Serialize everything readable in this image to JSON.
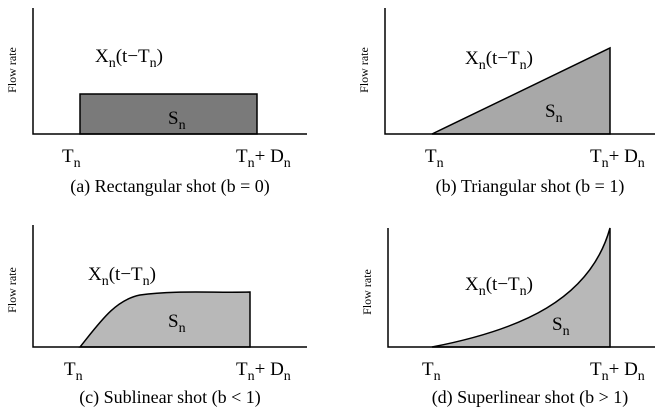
{
  "panels": [
    {
      "y_label": "Flow rate",
      "curve_label": [
        {
          "t": "X"
        },
        {
          "s": "n"
        },
        {
          "t": "(t−T"
        },
        {
          "s": "n"
        },
        {
          "t": ")"
        }
      ],
      "area_label": [
        {
          "t": "S"
        },
        {
          "s": "n"
        }
      ],
      "start_label": [
        {
          "t": "T"
        },
        {
          "s": "n"
        }
      ],
      "end_label": [
        {
          "t": "T"
        },
        {
          "s": "n"
        },
        {
          "t": "+ D"
        },
        {
          "s": "n"
        }
      ],
      "caption": "(a) Rectangular shot (b = 0)"
    },
    {
      "y_label": "Flow rate",
      "curve_label": [
        {
          "t": "X"
        },
        {
          "s": "n"
        },
        {
          "t": "(t−T"
        },
        {
          "s": "n"
        },
        {
          "t": ")"
        }
      ],
      "area_label": [
        {
          "t": "S"
        },
        {
          "s": "n"
        }
      ],
      "start_label": [
        {
          "t": "T"
        },
        {
          "s": "n"
        }
      ],
      "end_label": [
        {
          "t": "T"
        },
        {
          "s": "n"
        },
        {
          "t": "+ D"
        },
        {
          "s": "n"
        }
      ],
      "caption": "(b) Triangular shot (b = 1)"
    },
    {
      "y_label": "Flow rate",
      "curve_label": [
        {
          "t": "X"
        },
        {
          "s": "n"
        },
        {
          "t": "(t−T"
        },
        {
          "s": "n"
        },
        {
          "t": ")"
        }
      ],
      "area_label": [
        {
          "t": "S"
        },
        {
          "s": "n"
        }
      ],
      "start_label": [
        {
          "t": "T"
        },
        {
          "s": "n"
        }
      ],
      "end_label": [
        {
          "t": "T"
        },
        {
          "s": "n"
        },
        {
          "t": "+ D"
        },
        {
          "s": "n"
        }
      ],
      "caption": "(c) Sublinear shot (b < 1)"
    },
    {
      "y_label": "Flow rate",
      "curve_label": [
        {
          "t": "X"
        },
        {
          "s": "n"
        },
        {
          "t": "(t−T"
        },
        {
          "s": "n"
        },
        {
          "t": ")"
        }
      ],
      "area_label": [
        {
          "t": "S"
        },
        {
          "s": "n"
        }
      ],
      "start_label": [
        {
          "t": "T"
        },
        {
          "s": "n"
        }
      ],
      "end_label": [
        {
          "t": "T"
        },
        {
          "s": "n"
        },
        {
          "t": "+ D"
        },
        {
          "s": "n"
        }
      ],
      "caption": "(d) Superlinear shot (b > 1)"
    }
  ]
}
